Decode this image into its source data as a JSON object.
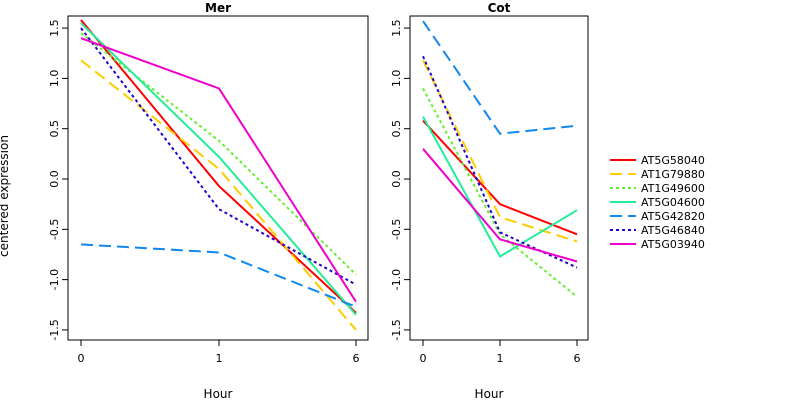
{
  "chart_data": [
    {
      "type": "line",
      "title": "Mer",
      "xlabel": "Hour",
      "ylabel": "centered expression",
      "categories": [
        "0",
        "1",
        "6"
      ],
      "ylim": [
        -1.6,
        1.62
      ],
      "yticks": [
        "-1.5",
        "-1.0",
        "-0.5",
        "0.0",
        "0.5",
        "1.0",
        "1.5"
      ],
      "series": [
        {
          "name": "AT5G58040",
          "values": [
            1.58,
            -0.07,
            -1.33
          ],
          "color": "#ff0000",
          "dash": "solid"
        },
        {
          "name": "AT1G79880",
          "values": [
            1.18,
            0.1,
            -1.5
          ],
          "color": "#ffcc00",
          "dash": "long"
        },
        {
          "name": "AT1G49600",
          "values": [
            1.45,
            0.38,
            -0.95
          ],
          "color": "#66ee33",
          "dash": "dot"
        },
        {
          "name": "AT5G04600",
          "values": [
            1.55,
            0.22,
            -1.35
          ],
          "color": "#22ee99",
          "dash": "solid"
        },
        {
          "name": "AT5G42820",
          "values": [
            -0.65,
            -0.73,
            -1.27
          ],
          "color": "#1188ee",
          "dash": "long"
        },
        {
          "name": "AT5G46840",
          "values": [
            1.5,
            -0.3,
            -1.05
          ],
          "color": "#2200cc",
          "dash": "dot"
        },
        {
          "name": "AT5G03940",
          "values": [
            1.4,
            0.9,
            -1.22
          ],
          "color": "#ee00cc",
          "dash": "solid"
        }
      ]
    },
    {
      "type": "line",
      "title": "Cot",
      "xlabel": "Hour",
      "ylabel": "",
      "categories": [
        "0",
        "1",
        "6"
      ],
      "ylim": [
        -1.6,
        1.62
      ],
      "yticks": [
        "-1.5",
        "-1.0",
        "-0.5",
        "0.0",
        "0.5",
        "1.0",
        "1.5"
      ],
      "series": [
        {
          "name": "AT5G58040",
          "values": [
            0.58,
            -0.25,
            -0.55
          ],
          "color": "#ff0000",
          "dash": "solid"
        },
        {
          "name": "AT1G79880",
          "values": [
            1.18,
            -0.38,
            -0.62
          ],
          "color": "#ffcc00",
          "dash": "long"
        },
        {
          "name": "AT1G49600",
          "values": [
            0.9,
            -0.55,
            -1.17
          ],
          "color": "#66ee33",
          "dash": "dot"
        },
        {
          "name": "AT5G04600",
          "values": [
            0.62,
            -0.77,
            -0.31
          ],
          "color": "#22ee99",
          "dash": "solid"
        },
        {
          "name": "AT5G42820",
          "values": [
            1.57,
            0.45,
            0.53
          ],
          "color": "#1188ee",
          "dash": "long"
        },
        {
          "name": "AT5G46840",
          "values": [
            1.22,
            -0.53,
            -0.88
          ],
          "color": "#2200cc",
          "dash": "dot"
        },
        {
          "name": "AT5G03940",
          "values": [
            0.3,
            -0.6,
            -0.82
          ],
          "color": "#ee00cc",
          "dash": "solid"
        }
      ]
    }
  ]
}
